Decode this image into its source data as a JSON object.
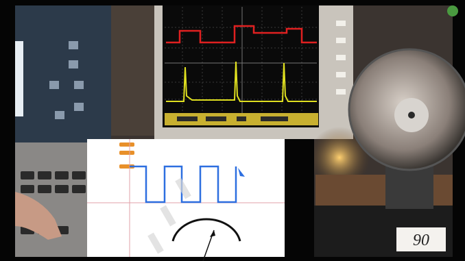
{
  "card": {
    "label": "90"
  }
}
